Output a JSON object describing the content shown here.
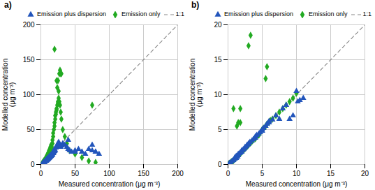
{
  "chart_data": [
    {
      "type": "scatter",
      "title": "a)",
      "xlabel": "Measured concentration (μg m⁻³)",
      "ylabel": "Modelled concentration\n(μg m⁻³)",
      "xlim": [
        0,
        200
      ],
      "ylim": [
        0,
        200
      ],
      "xticks": [
        0,
        50,
        100,
        150,
        200
      ],
      "yticks": [
        0,
        50,
        100,
        150,
        200
      ],
      "grid": true,
      "legend": "upper right",
      "series": [
        {
          "name": "Emission plus dispersion",
          "type": "scatter",
          "color": "#2255bb",
          "marker": "triangle",
          "x": [
            2,
            3,
            4,
            5,
            5,
            6,
            7,
            7,
            8,
            8,
            9,
            9,
            10,
            10,
            11,
            11,
            12,
            12,
            13,
            13,
            14,
            14,
            15,
            15,
            16,
            16,
            17,
            18,
            18,
            19,
            20,
            20,
            21,
            22,
            23,
            24,
            25,
            26,
            27,
            28,
            29,
            30,
            32,
            35,
            38,
            40,
            42,
            45,
            50,
            55,
            60,
            65,
            70,
            75,
            80,
            85,
            40,
            50,
            60,
            75,
            80
          ],
          "values": [
            1,
            2,
            3,
            3,
            4,
            4,
            5,
            6,
            5,
            7,
            6,
            8,
            7,
            9,
            8,
            10,
            9,
            11,
            10,
            12,
            11,
            13,
            12,
            14,
            13,
            15,
            14,
            16,
            18,
            17,
            19,
            22,
            20,
            24,
            26,
            28,
            30,
            32,
            26,
            28,
            25,
            27,
            30,
            28,
            25,
            22,
            20,
            18,
            18,
            22,
            18,
            15,
            22,
            20,
            18,
            15,
            35,
            20,
            18,
            28,
            18
          ]
        },
        {
          "name": "Emission only",
          "type": "scatter",
          "color": "#22aa22",
          "marker": "diamond",
          "x": [
            2,
            3,
            4,
            5,
            5,
            6,
            7,
            7,
            8,
            8,
            9,
            9,
            10,
            10,
            11,
            11,
            12,
            12,
            13,
            13,
            14,
            14,
            15,
            15,
            16,
            17,
            17,
            18,
            18,
            19,
            20,
            20,
            21,
            21,
            22,
            22,
            23,
            23,
            24,
            25,
            25,
            26,
            27,
            28,
            29,
            30,
            32,
            35,
            38,
            42,
            50,
            60,
            70,
            80,
            20,
            23,
            24,
            25,
            26,
            27,
            28,
            29,
            30,
            75
          ],
          "values": [
            2,
            3,
            5,
            4,
            6,
            5,
            7,
            9,
            8,
            11,
            10,
            13,
            12,
            15,
            14,
            17,
            16,
            20,
            18,
            22,
            20,
            25,
            22,
            28,
            25,
            30,
            35,
            40,
            45,
            50,
            55,
            60,
            65,
            70,
            72,
            75,
            78,
            80,
            85,
            88,
            90,
            95,
            90,
            85,
            75,
            65,
            50,
            40,
            30,
            20,
            15,
            10,
            5,
            3,
            165,
            120,
            110,
            120,
            105,
            130,
            135,
            130,
            130,
            85
          ]
        },
        {
          "name": "1:1",
          "type": "line",
          "color": "#888888",
          "line_style": "dashed",
          "x": [
            0,
            200
          ],
          "values": [
            0,
            200
          ]
        }
      ]
    },
    {
      "type": "scatter",
      "title": "b)",
      "xlabel": "Measured concentration (μg m⁻³)",
      "ylabel": "Modelled concentration\n(μg m⁻³)",
      "xlim": [
        0,
        20
      ],
      "ylim": [
        0,
        20
      ],
      "xticks": [
        0,
        5,
        10,
        15,
        20
      ],
      "yticks": [
        0,
        5,
        10,
        15,
        20
      ],
      "grid": true,
      "legend": "upper right",
      "series": [
        {
          "name": "Emission plus dispersion",
          "type": "scatter",
          "color": "#2255bb",
          "marker": "triangle",
          "x": [
            0.2,
            0.4,
            0.6,
            0.8,
            1.0,
            1.0,
            1.2,
            1.2,
            1.4,
            1.5,
            1.5,
            1.7,
            1.8,
            2.0,
            2.0,
            2.2,
            2.3,
            2.5,
            2.5,
            2.7,
            2.8,
            3.0,
            3.0,
            3.2,
            3.5,
            3.7,
            4.0,
            4.0,
            4.2,
            4.5,
            4.7,
            5.0,
            5.0,
            5.2,
            5.5,
            5.7,
            6.0,
            6.0,
            6.5,
            7.0,
            7.5,
            8.0,
            8.5,
            9.0,
            9.5,
            10.0,
            10.2,
            10.5,
            11.0
          ],
          "values": [
            0.2,
            0.3,
            0.5,
            0.6,
            0.8,
            1.0,
            0.9,
            1.2,
            1.1,
            1.3,
            1.5,
            1.6,
            1.7,
            1.8,
            2.0,
            2.1,
            2.2,
            2.4,
            2.5,
            2.6,
            2.8,
            2.9,
            3.0,
            3.2,
            3.4,
            3.6,
            3.8,
            4.0,
            4.2,
            4.4,
            4.6,
            4.8,
            5.0,
            5.2,
            5.5,
            5.8,
            6.0,
            6.2,
            6.4,
            7.0,
            6.5,
            8.0,
            8.5,
            6.5,
            7.0,
            10.5,
            9.0,
            9.2,
            9.5
          ]
        },
        {
          "name": "Emission only",
          "type": "scatter",
          "color": "#22aa22",
          "marker": "diamond",
          "x": [
            0.1,
            0.2,
            0.3,
            0.4,
            0.5,
            0.6,
            0.7,
            0.8,
            0.9,
            1.0,
            1.1,
            1.2,
            1.3,
            1.4,
            1.5,
            1.6,
            1.7,
            1.8,
            1.9,
            2.0,
            2.1,
            2.2,
            2.3,
            2.4,
            2.5,
            2.6,
            2.7,
            2.8,
            2.9,
            3.0,
            3.2,
            3.3,
            3.5,
            3.7,
            4.0,
            4.2,
            4.5,
            4.7,
            5.0,
            5.2,
            5.5,
            5.7,
            6.0,
            6.2,
            6.5,
            7.0,
            7.5,
            8.0,
            8.5,
            9.0,
            9.5,
            10.0,
            3.0,
            3.3,
            5.5,
            5.7,
            1.8,
            1.5,
            1.8,
            1.3,
            0.8
          ],
          "values": [
            0.1,
            0.1,
            0.2,
            0.3,
            0.4,
            0.4,
            0.5,
            0.6,
            0.7,
            0.8,
            0.9,
            1.0,
            1.1,
            1.2,
            1.3,
            1.4,
            1.5,
            1.6,
            1.7,
            1.8,
            1.9,
            2.0,
            2.1,
            2.2,
            2.3,
            2.4,
            2.5,
            2.6,
            2.7,
            2.8,
            3.0,
            3.1,
            3.3,
            3.5,
            3.7,
            4.0,
            4.2,
            4.5,
            5.0,
            5.2,
            5.5,
            5.8,
            6.0,
            6.3,
            6.5,
            7.0,
            7.5,
            8.0,
            8.5,
            9.0,
            9.5,
            10.2,
            17.0,
            18.5,
            12.3,
            14.0,
            8.0,
            6.0,
            6.0,
            5.5,
            8.0
          ]
        },
        {
          "name": "1:1",
          "type": "line",
          "color": "#888888",
          "line_style": "dashed",
          "x": [
            0,
            20
          ],
          "values": [
            0,
            20
          ]
        }
      ]
    }
  ]
}
